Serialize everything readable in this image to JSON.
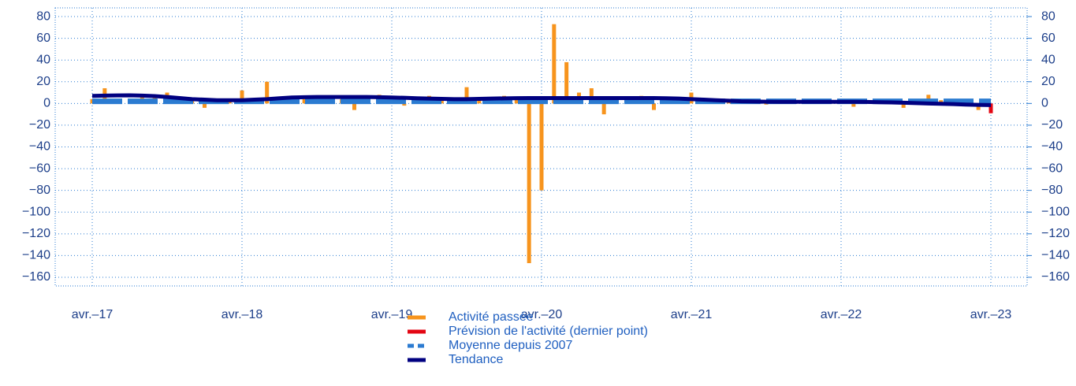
{
  "chart_data": {
    "type": "bar",
    "categories": [
      "avr.–17",
      null,
      null,
      null,
      null,
      null,
      null,
      null,
      null,
      null,
      null,
      null,
      "avr.–18",
      null,
      null,
      null,
      null,
      null,
      null,
      null,
      null,
      null,
      null,
      null,
      "avr.–19",
      null,
      null,
      null,
      null,
      null,
      null,
      null,
      null,
      null,
      null,
      null,
      "avr.–20",
      null,
      null,
      null,
      null,
      null,
      null,
      null,
      null,
      null,
      null,
      null,
      "avr.–21",
      null,
      null,
      null,
      null,
      null,
      null,
      null,
      null,
      null,
      null,
      null,
      "avr.–22",
      null,
      null,
      null,
      null,
      null,
      null,
      null,
      null,
      null,
      null,
      null,
      "avr.–23"
    ],
    "series": [
      {
        "name": "Activité passée",
        "color": "#f7941d",
        "kind": "bar",
        "values": [
          4,
          14,
          3,
          3,
          8,
          5,
          10,
          4,
          3,
          -4,
          3,
          2,
          12,
          3,
          20,
          2,
          3,
          4,
          3,
          5,
          4,
          -6,
          5,
          8,
          6,
          -2,
          3,
          7,
          4,
          3,
          15,
          4,
          3,
          7,
          4,
          -147,
          -80,
          73,
          38,
          10,
          14,
          -10,
          4,
          3,
          7,
          -6,
          4,
          5,
          10,
          3,
          3,
          2,
          2,
          1,
          -1,
          2,
          3,
          2,
          2,
          2,
          2,
          -3,
          2,
          2,
          2,
          -4,
          2,
          8,
          3,
          2,
          3,
          -6,
          null
        ]
      },
      {
        "name": "Prévision de l'activité (dernier point)",
        "color": "#e30613",
        "kind": "bar",
        "values": [
          null,
          null,
          null,
          null,
          null,
          null,
          null,
          null,
          null,
          null,
          null,
          null,
          null,
          null,
          null,
          null,
          null,
          null,
          null,
          null,
          null,
          null,
          null,
          null,
          null,
          null,
          null,
          null,
          null,
          null,
          null,
          null,
          null,
          null,
          null,
          null,
          null,
          null,
          null,
          null,
          null,
          null,
          null,
          null,
          null,
          null,
          null,
          null,
          null,
          null,
          null,
          null,
          null,
          null,
          null,
          null,
          null,
          null,
          null,
          null,
          null,
          null,
          null,
          null,
          null,
          null,
          null,
          null,
          null,
          null,
          null,
          null,
          -9
        ]
      },
      {
        "name": "Moyenne depuis 2007",
        "color": "#2b7bd1",
        "kind": "line",
        "dashed": true,
        "values": [
          2,
          2,
          2,
          2,
          2,
          2,
          2,
          2,
          2,
          2,
          2,
          2,
          2,
          2,
          2,
          2,
          2,
          2,
          2,
          2,
          2,
          2,
          2,
          2,
          2,
          2,
          2,
          2,
          2,
          2,
          2,
          2,
          2,
          2,
          2,
          2,
          2,
          2,
          2,
          2,
          2,
          2,
          2,
          2,
          2,
          2,
          2,
          2,
          2,
          2,
          2,
          2,
          2,
          2,
          2,
          2,
          2,
          2,
          2,
          2,
          2,
          2,
          2,
          2,
          2,
          2,
          2,
          2,
          2,
          2,
          2,
          2,
          2
        ]
      },
      {
        "name": "Tendance",
        "color": "#000080",
        "kind": "line",
        "dashed": false,
        "values": [
          7,
          7.2,
          7.4,
          7.5,
          7.2,
          6.8,
          6,
          5,
          4,
          3.5,
          3,
          3,
          3,
          3.5,
          4,
          4.8,
          5.5,
          5.8,
          6,
          6,
          6,
          6,
          6,
          5.8,
          5.5,
          5.2,
          4.8,
          4.5,
          4.2,
          4,
          4,
          4.2,
          4.5,
          4.7,
          4.9,
          5,
          5,
          5,
          5,
          5,
          5,
          5,
          5,
          5,
          5,
          5,
          4.8,
          4.5,
          4,
          3.5,
          3,
          2.5,
          2,
          1.8,
          1.6,
          1.5,
          1.5,
          1.5,
          1.5,
          1.5,
          1.5,
          1.5,
          1.4,
          1.2,
          1,
          0.7,
          0.3,
          0,
          -0.3,
          -0.6,
          -1,
          -1.3,
          -1.5
        ]
      }
    ],
    "ylim": [
      -168,
      88
    ],
    "yticks": [
      80,
      60,
      40,
      20,
      0,
      {
        "value": -20,
        "label": "−20"
      },
      {
        "value": -40,
        "label": "−40"
      },
      {
        "value": -60,
        "label": "−60"
      },
      {
        "value": -80,
        "label": "−80"
      },
      {
        "value": -100,
        "label": "−100"
      },
      {
        "value": -120,
        "label": "−120"
      },
      {
        "value": -140,
        "label": "−140"
      },
      {
        "value": -160,
        "label": "−160"
      }
    ],
    "y2lim": [
      -168,
      88
    ],
    "y2ticks": [
      80,
      60,
      40,
      20,
      0,
      {
        "value": -20,
        "label": "−20"
      },
      {
        "value": -40,
        "label": "−40"
      },
      {
        "value": -60,
        "label": "−60"
      },
      {
        "value": -80,
        "label": "−80"
      },
      {
        "value": -100,
        "label": "−100"
      },
      {
        "value": -120,
        "label": "−120"
      },
      {
        "value": -140,
        "label": "−140"
      },
      {
        "value": -160,
        "label": "−160"
      }
    ],
    "grid": true
  }
}
